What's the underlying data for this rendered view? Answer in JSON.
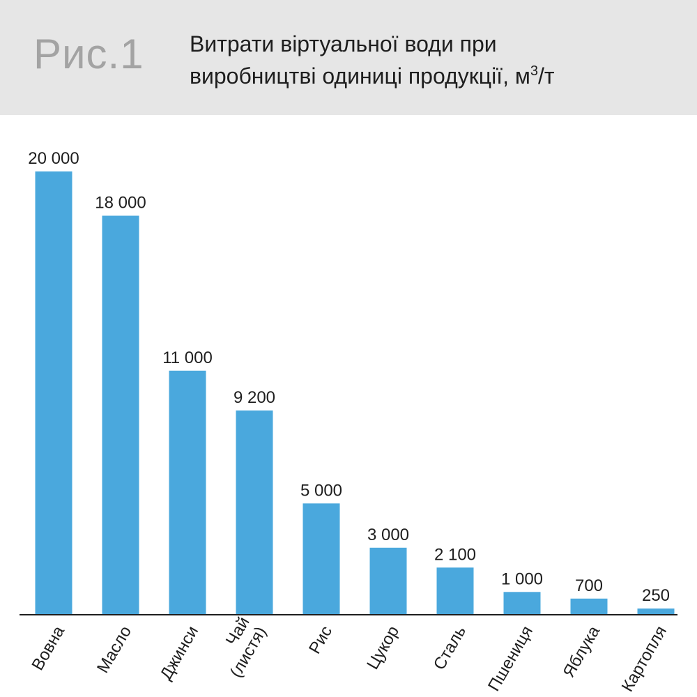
{
  "header": {
    "fig_label": "Рис.1",
    "title_line1": "Витрати віртуальної води при",
    "title_line2_prefix": "виробництві одиниці продукції, м",
    "title_sup": "3",
    "title_line2_suffix": "/т"
  },
  "colors": {
    "bar": "#4aa8dd",
    "header_bg": "#e6e6e6",
    "axis": "#1e1e1e"
  },
  "chart_data": {
    "type": "bar",
    "title": "Витрати віртуальної води при виробництві одиниці продукції, м3/т",
    "xlabel": "",
    "ylabel": "",
    "ylim": [
      0,
      20000
    ],
    "grid": false,
    "categories": [
      "Вовна",
      "Масло",
      "Джинси",
      "Чай (листя)",
      "Рис",
      "Цукор",
      "Сталь",
      "Пшениця",
      "Яблука",
      "Картопля"
    ],
    "category_lines": [
      [
        "Вовна"
      ],
      [
        "Масло"
      ],
      [
        "Джинси"
      ],
      [
        "Чай",
        "(листя)"
      ],
      [
        "Рис"
      ],
      [
        "Цукор"
      ],
      [
        "Сталь"
      ],
      [
        "Пшениця"
      ],
      [
        "Яблука"
      ],
      [
        "Картопля"
      ]
    ],
    "values": [
      20000,
      18000,
      11000,
      9200,
      5000,
      3000,
      2100,
      1000,
      700,
      250
    ],
    "value_labels": [
      "20 000",
      "18 000",
      "11 000",
      "9 200",
      "5 000",
      "3 000",
      "2 100",
      "1 000",
      "700",
      "250"
    ]
  }
}
